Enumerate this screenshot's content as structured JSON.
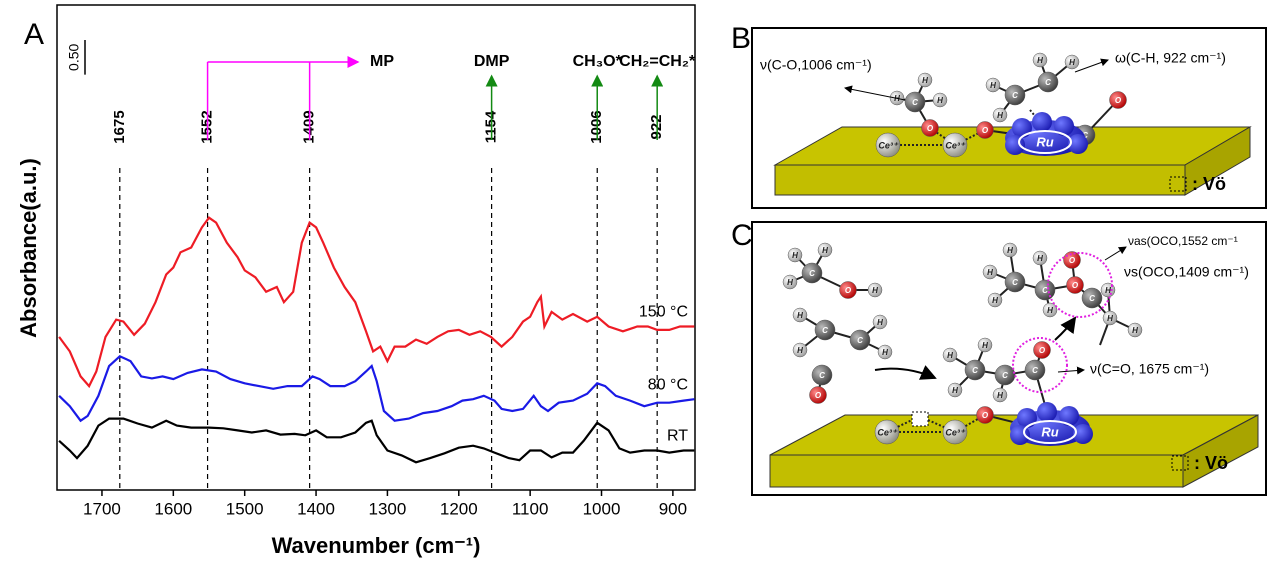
{
  "chart_data": {
    "type": "line",
    "panel": "A",
    "xlabel": "Wavenumber (cm⁻¹)",
    "ylabel": "Absorbance(a.u.)",
    "xlim": [
      1763,
      869
    ],
    "ylim": [
      0,
      7
    ],
    "xticks": [
      1700,
      1600,
      1500,
      1400,
      1300,
      1200,
      1100,
      1000,
      900
    ],
    "scale_bar": {
      "value": 0.5,
      "label": "0.50"
    },
    "reference_lines": [
      1675,
      1552,
      1409,
      1154,
      1006,
      922
    ],
    "top_labels": [
      "MP",
      "DMP",
      "CH₃O*",
      "CH₂=CH₂*"
    ],
    "series": [
      {
        "name": "150 °C",
        "color": "#ee1c25",
        "x": [
          1760,
          1745,
          1730,
          1718,
          1708,
          1695,
          1680,
          1670,
          1655,
          1640,
          1625,
          1610,
          1600,
          1590,
          1575,
          1560,
          1550,
          1540,
          1525,
          1510,
          1500,
          1485,
          1470,
          1455,
          1445,
          1432,
          1420,
          1409,
          1400,
          1390,
          1375,
          1360,
          1345,
          1330,
          1320,
          1310,
          1300,
          1290,
          1275,
          1260,
          1245,
          1230,
          1215,
          1200,
          1185,
          1170,
          1155,
          1140,
          1125,
          1110,
          1100,
          1090,
          1085,
          1080,
          1070,
          1055,
          1040,
          1020,
          1006,
          990,
          970,
          950,
          935,
          922,
          905,
          890,
          870
        ],
        "values": [
          2.21,
          2.0,
          1.64,
          1.5,
          1.71,
          2.21,
          2.46,
          2.43,
          2.24,
          2.4,
          2.71,
          3.11,
          3.21,
          3.43,
          3.5,
          3.79,
          3.93,
          3.86,
          3.57,
          3.36,
          3.17,
          3.07,
          2.86,
          2.93,
          2.71,
          2.86,
          3.57,
          3.86,
          3.79,
          3.57,
          3.21,
          2.93,
          2.71,
          2.29,
          2.0,
          2.07,
          1.86,
          2.07,
          2.07,
          2.17,
          2.11,
          2.21,
          2.29,
          2.31,
          2.24,
          2.29,
          2.21,
          2.07,
          2.21,
          2.43,
          2.5,
          2.71,
          2.79,
          2.36,
          2.57,
          2.46,
          2.54,
          2.43,
          2.5,
          2.36,
          2.29,
          2.36,
          2.36,
          2.31,
          2.31,
          2.36,
          2.36
        ]
      },
      {
        "name": "80 °C",
        "color": "#1a1ae6",
        "x": [
          1760,
          1745,
          1730,
          1720,
          1705,
          1690,
          1675,
          1660,
          1645,
          1630,
          1615,
          1600,
          1580,
          1560,
          1540,
          1520,
          1500,
          1480,
          1460,
          1440,
          1420,
          1405,
          1395,
          1380,
          1360,
          1345,
          1330,
          1322,
          1315,
          1305,
          1290,
          1270,
          1250,
          1230,
          1210,
          1195,
          1180,
          1165,
          1150,
          1140,
          1125,
          1110,
          1095,
          1085,
          1075,
          1060,
          1040,
          1020,
          1006,
          995,
          980,
          960,
          940,
          922,
          905,
          885,
          870
        ],
        "values": [
          1.36,
          1.21,
          1.0,
          1.07,
          1.36,
          1.79,
          1.93,
          1.86,
          1.64,
          1.61,
          1.64,
          1.6,
          1.69,
          1.74,
          1.71,
          1.6,
          1.54,
          1.5,
          1.46,
          1.5,
          1.5,
          1.64,
          1.6,
          1.5,
          1.5,
          1.57,
          1.71,
          1.79,
          1.57,
          1.14,
          1.0,
          1.03,
          1.11,
          1.14,
          1.21,
          1.29,
          1.31,
          1.36,
          1.29,
          1.17,
          1.14,
          1.17,
          1.36,
          1.21,
          1.14,
          1.26,
          1.29,
          1.39,
          1.54,
          1.5,
          1.36,
          1.29,
          1.21,
          1.26,
          1.26,
          1.29,
          1.31
        ]
      },
      {
        "name": "RT",
        "color": "#000000",
        "x": [
          1760,
          1745,
          1735,
          1720,
          1705,
          1690,
          1670,
          1650,
          1630,
          1610,
          1595,
          1575,
          1550,
          1530,
          1510,
          1490,
          1470,
          1450,
          1430,
          1415,
          1400,
          1385,
          1365,
          1345,
          1330,
          1322,
          1315,
          1300,
          1280,
          1260,
          1240,
          1220,
          1200,
          1180,
          1165,
          1150,
          1130,
          1115,
          1100,
          1085,
          1070,
          1055,
          1040,
          1025,
          1006,
          990,
          975,
          960,
          940,
          922,
          905,
          885,
          870
        ],
        "values": [
          0.71,
          0.57,
          0.46,
          0.64,
          0.93,
          1.03,
          1.03,
          0.96,
          0.9,
          1.0,
          0.93,
          0.9,
          0.9,
          0.89,
          0.86,
          0.83,
          0.86,
          0.8,
          0.81,
          0.79,
          0.86,
          0.76,
          0.76,
          0.83,
          0.97,
          1.0,
          0.79,
          0.57,
          0.5,
          0.4,
          0.46,
          0.53,
          0.61,
          0.64,
          0.6,
          0.54,
          0.46,
          0.43,
          0.57,
          0.57,
          0.47,
          0.54,
          0.54,
          0.71,
          0.97,
          0.86,
          0.6,
          0.54,
          0.57,
          0.57,
          0.54,
          0.57,
          0.57
        ]
      }
    ]
  },
  "panel_b": {
    "letter": "B",
    "annotations": [
      "ν(C-O,1006 cm⁻¹)",
      "ω(C-H, 922 cm⁻¹)"
    ],
    "cluster": "Ru",
    "legend": ": Vö",
    "atoms": [
      "Ce³⁺",
      "Ce³⁺",
      "O",
      "O",
      "C",
      "H",
      "H",
      "H",
      "C",
      "C",
      "H",
      "H",
      "H",
      "H",
      "C",
      "O"
    ]
  },
  "panel_c": {
    "letter": "C",
    "annotations": [
      "νas(OCO,1552 cm⁻¹",
      "νs(OCO,1409 cm⁻¹)",
      "ν(C=O, 1675 cm⁻¹)"
    ],
    "cluster": "Ru",
    "legend": ": Vö",
    "atoms": [
      "Ce³⁺",
      "Ce³⁺",
      "O",
      "H",
      "H",
      "H",
      "C",
      "O",
      "H",
      "H",
      "C",
      "H",
      "C",
      "H",
      "H",
      "C",
      "O",
      "H",
      "H",
      "C",
      "H",
      "H",
      "C",
      "C",
      "O",
      "H",
      "H",
      "H",
      "C",
      "H",
      "H",
      "C",
      "O",
      "O",
      "C",
      "H",
      "H",
      "H"
    ]
  }
}
